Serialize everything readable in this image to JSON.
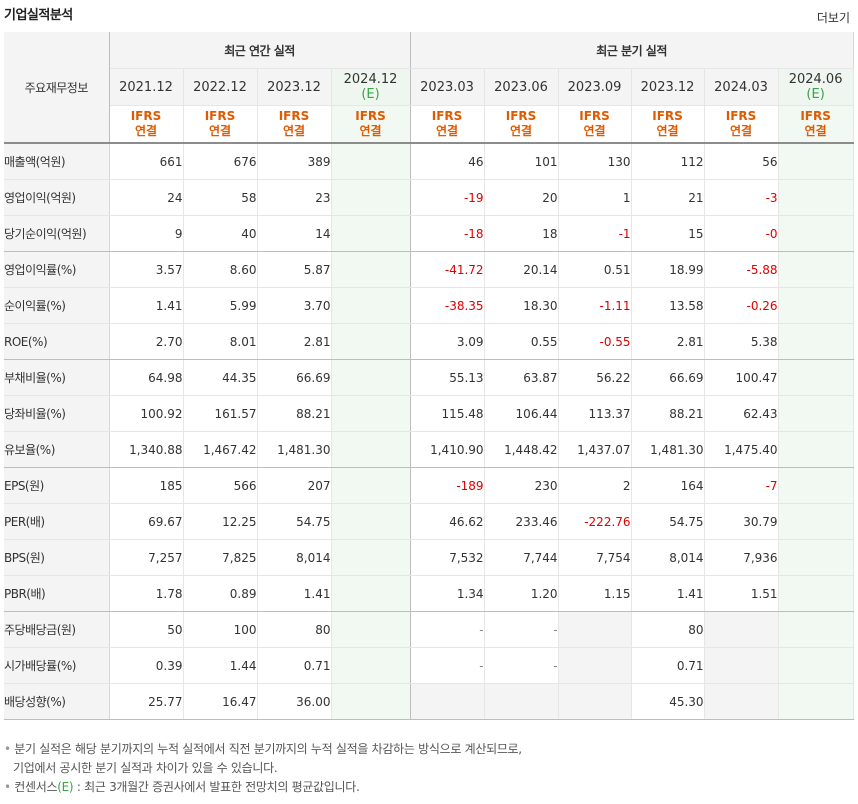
{
  "header": {
    "title": "기업실적분석",
    "more": "더보기"
  },
  "table": {
    "row_header_label": "주요재무정보",
    "annual_group": "최근 연간 실적",
    "quarter_group": "최근 분기 실적",
    "ifrs_top": "IFRS",
    "ifrs_bottom": "연결",
    "annual_periods": [
      {
        "p": "2021.12",
        "e": ""
      },
      {
        "p": "2022.12",
        "e": ""
      },
      {
        "p": "2023.12",
        "e": ""
      },
      {
        "p": "2024.12",
        "e": "(E)"
      }
    ],
    "quarter_periods": [
      {
        "p": "2023.03",
        "e": ""
      },
      {
        "p": "2023.06",
        "e": ""
      },
      {
        "p": "2023.09",
        "e": ""
      },
      {
        "p": "2023.12",
        "e": ""
      },
      {
        "p": "2024.03",
        "e": ""
      },
      {
        "p": "2024.06",
        "e": "(E)"
      }
    ],
    "rows": [
      {
        "label": "매출액(억원)",
        "annual": [
          "661",
          "676",
          "389",
          ""
        ],
        "quarter": [
          "46",
          "101",
          "130",
          "112",
          "56",
          ""
        ]
      },
      {
        "label": "영업이익(억원)",
        "annual": [
          "24",
          "58",
          "23",
          ""
        ],
        "quarter": [
          "-19",
          "20",
          "1",
          "21",
          "-3",
          ""
        ]
      },
      {
        "label": "당기순이익(억원)",
        "annual": [
          "9",
          "40",
          "14",
          ""
        ],
        "quarter": [
          "-18",
          "18",
          "-1",
          "15",
          "-0",
          ""
        ]
      },
      {
        "label": "영업이익률(%)",
        "annual": [
          "3.57",
          "8.60",
          "5.87",
          ""
        ],
        "quarter": [
          "-41.72",
          "20.14",
          "0.51",
          "18.99",
          "-5.88",
          ""
        ]
      },
      {
        "label": "순이익률(%)",
        "annual": [
          "1.41",
          "5.99",
          "3.70",
          ""
        ],
        "quarter": [
          "-38.35",
          "18.30",
          "-1.11",
          "13.58",
          "-0.26",
          ""
        ]
      },
      {
        "label": "ROE(%)",
        "annual": [
          "2.70",
          "8.01",
          "2.81",
          ""
        ],
        "quarter": [
          "3.09",
          "0.55",
          "-0.55",
          "2.81",
          "5.38",
          ""
        ]
      },
      {
        "label": "부채비율(%)",
        "annual": [
          "64.98",
          "44.35",
          "66.69",
          ""
        ],
        "quarter": [
          "55.13",
          "63.87",
          "56.22",
          "66.69",
          "100.47",
          ""
        ]
      },
      {
        "label": "당좌비율(%)",
        "annual": [
          "100.92",
          "161.57",
          "88.21",
          ""
        ],
        "quarter": [
          "115.48",
          "106.44",
          "113.37",
          "88.21",
          "62.43",
          ""
        ]
      },
      {
        "label": "유보율(%)",
        "annual": [
          "1,340.88",
          "1,467.42",
          "1,481.30",
          ""
        ],
        "quarter": [
          "1,410.90",
          "1,448.42",
          "1,437.07",
          "1,481.30",
          "1,475.40",
          ""
        ]
      },
      {
        "label": "EPS(원)",
        "annual": [
          "185",
          "566",
          "207",
          ""
        ],
        "quarter": [
          "-189",
          "230",
          "2",
          "164",
          "-7",
          ""
        ]
      },
      {
        "label": "PER(배)",
        "annual": [
          "69.67",
          "12.25",
          "54.75",
          ""
        ],
        "quarter": [
          "46.62",
          "233.46",
          "-222.76",
          "54.75",
          "30.79",
          ""
        ]
      },
      {
        "label": "BPS(원)",
        "annual": [
          "7,257",
          "7,825",
          "8,014",
          ""
        ],
        "quarter": [
          "7,532",
          "7,744",
          "7,754",
          "8,014",
          "7,936",
          ""
        ]
      },
      {
        "label": "PBR(배)",
        "annual": [
          "1.78",
          "0.89",
          "1.41",
          ""
        ],
        "quarter": [
          "1.34",
          "1.20",
          "1.15",
          "1.41",
          "1.51",
          ""
        ]
      },
      {
        "label": "주당배당금(원)",
        "annual": [
          "50",
          "100",
          "80",
          ""
        ],
        "quarter": [
          "-",
          "-",
          "",
          "80",
          "",
          ""
        ]
      },
      {
        "label": "시가배당률(%)",
        "annual": [
          "0.39",
          "1.44",
          "0.71",
          ""
        ],
        "quarter": [
          "-",
          "-",
          "",
          "0.71",
          "",
          ""
        ]
      },
      {
        "label": "배당성향(%)",
        "annual": [
          "25.77",
          "16.47",
          "36.00",
          ""
        ],
        "quarter": [
          "",
          "",
          "",
          "45.30",
          "",
          ""
        ]
      }
    ]
  },
  "notes": {
    "line1": "분기 실적은 해당 분기까지의 누적 실적에서 직전 분기까지의 누적 실적을 차감하는 방식으로 계산되므로,",
    "line2": "기업에서 공시한 분기 실적과 차이가 있을 수 있습니다.",
    "line3_pre": "컨센서스",
    "line3_e": "(E)",
    "line3_post": " : 최근 3개월간 증권사에서 발표한 전망치의 평균값입니다."
  },
  "colors": {
    "negative": "#e00000",
    "ifrs": "#e05a00",
    "estimate": "#3aa447"
  }
}
